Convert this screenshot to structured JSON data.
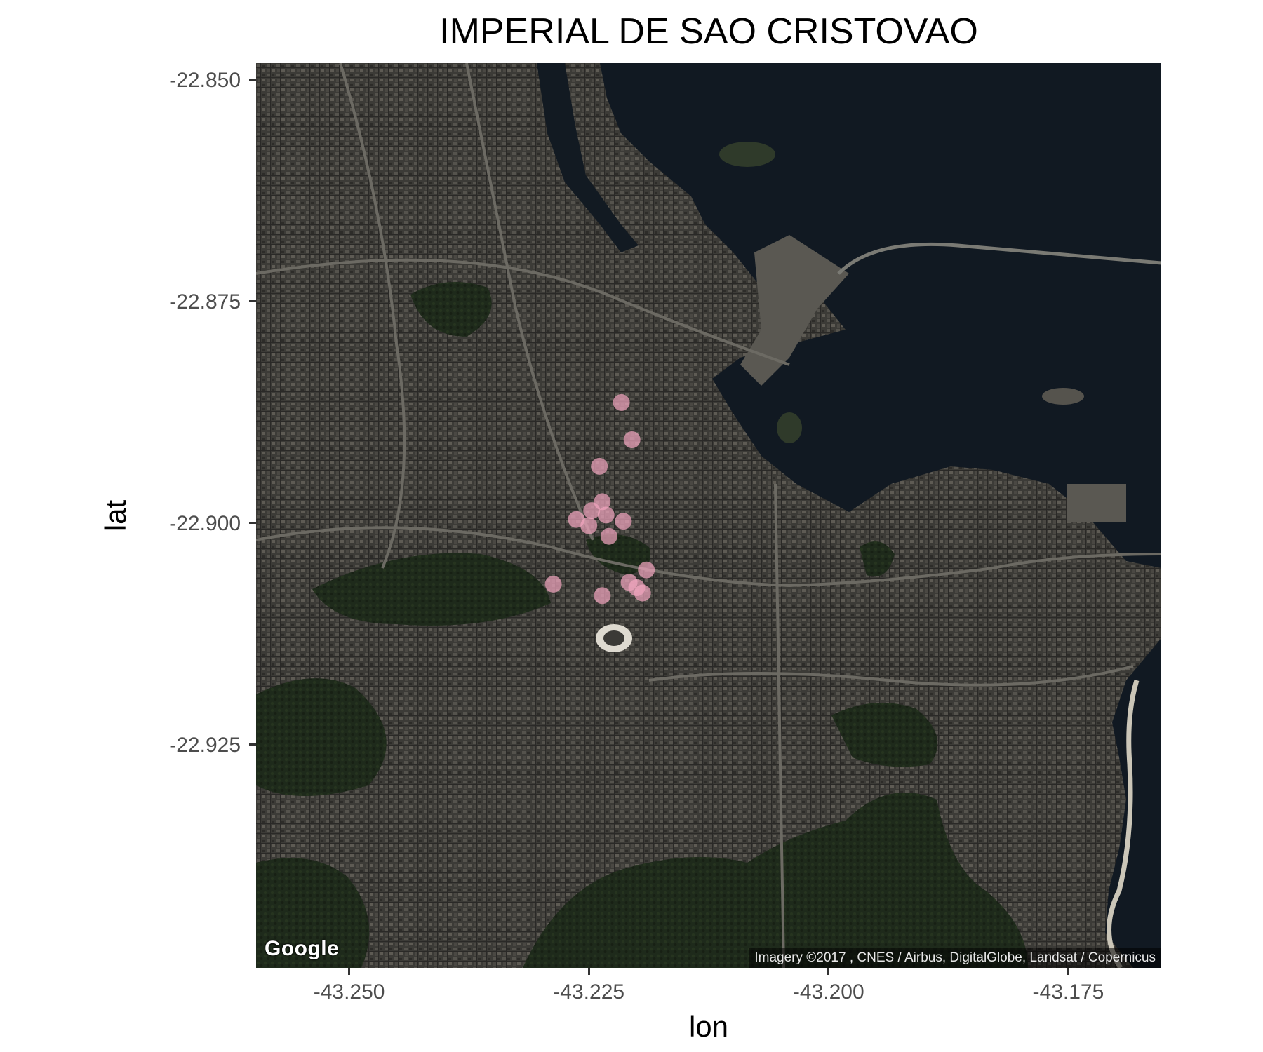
{
  "title": "IMPERIAL DE SAO CRISTOVAO",
  "chart_data": {
    "type": "scatter",
    "title": "IMPERIAL DE SAO CRISTOVAO",
    "xlabel": "lon",
    "ylabel": "lat",
    "xlim": [
      -43.2597,
      -43.1653
    ],
    "ylim": [
      -22.9502,
      -22.8481
    ],
    "x_ticks": [
      -43.25,
      -43.225,
      -43.2,
      -43.175
    ],
    "x_tick_labels": [
      "-43.250",
      "-43.225",
      "-43.200",
      "-43.175"
    ],
    "y_ticks": [
      -22.85,
      -22.875,
      -22.9,
      -22.925
    ],
    "y_tick_labels": [
      "-22.850",
      "-22.875",
      "-22.900",
      "-22.925"
    ],
    "grid": false,
    "marker_color": "#f4a6c0",
    "points": [
      {
        "lon": -43.2216,
        "lat": -22.8864
      },
      {
        "lon": -43.2205,
        "lat": -22.8906
      },
      {
        "lon": -43.2239,
        "lat": -22.8936
      },
      {
        "lon": -43.2263,
        "lat": -22.8996
      },
      {
        "lon": -43.2247,
        "lat": -22.8986
      },
      {
        "lon": -43.2236,
        "lat": -22.8976
      },
      {
        "lon": -43.225,
        "lat": -22.9003
      },
      {
        "lon": -43.2229,
        "lat": -22.9015
      },
      {
        "lon": -43.2214,
        "lat": -22.8998
      },
      {
        "lon": -43.2232,
        "lat": -22.8991
      },
      {
        "lon": -43.219,
        "lat": -22.9053
      },
      {
        "lon": -43.22,
        "lat": -22.9073
      },
      {
        "lon": -43.2208,
        "lat": -22.9067
      },
      {
        "lon": -43.2194,
        "lat": -22.9079
      },
      {
        "lon": -43.2287,
        "lat": -22.9069
      },
      {
        "lon": -43.2236,
        "lat": -22.9082
      }
    ]
  },
  "basemap": {
    "logo_text": "Google",
    "attribution": "Imagery ©2017 , CNES / Airbus, DigitalGlobe, Landsat / Copernicus",
    "colors": {
      "urban": "#3b3a36",
      "forest": "#1f2a1c",
      "water": "#101821"
    }
  }
}
